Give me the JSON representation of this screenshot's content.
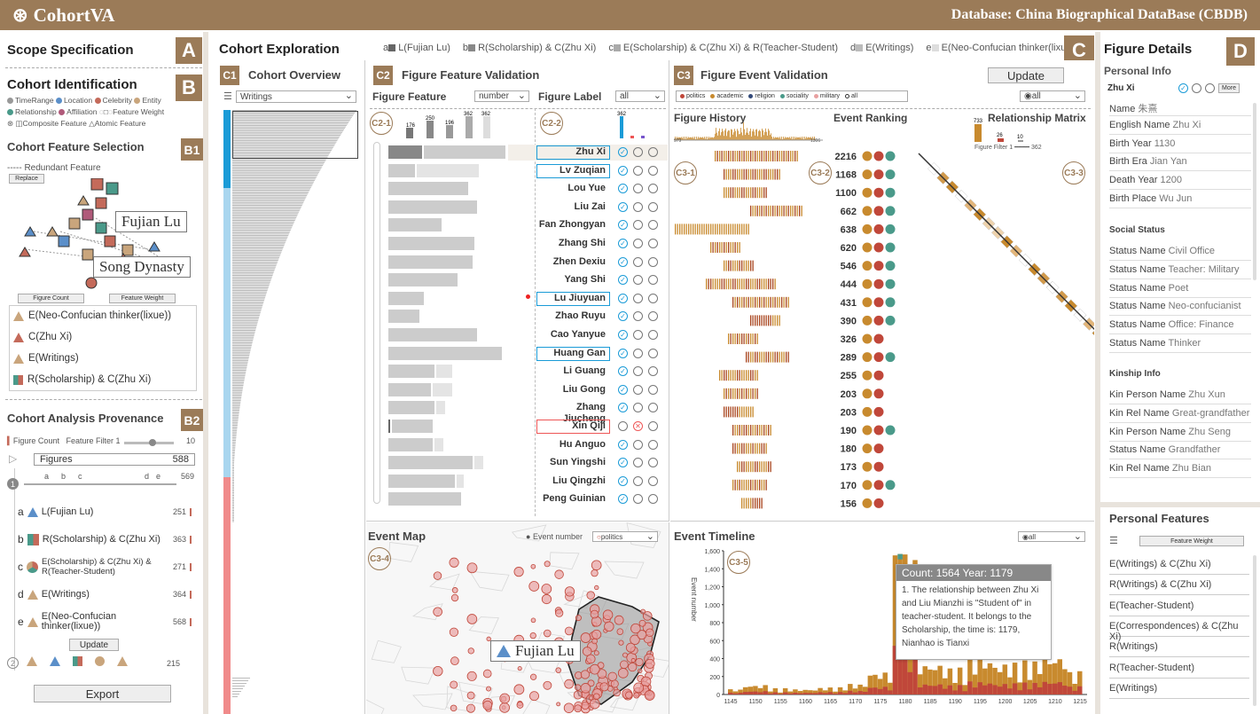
{
  "app": {
    "title": "CohortVA",
    "database": "Database: China Biographical DataBase (CBDB)"
  },
  "scope": {
    "title": "Scope Specification",
    "letter": "A"
  },
  "identification": {
    "title": "Cohort Identification",
    "letter": "B",
    "legend": [
      "TimeRange",
      "Location",
      "Celebrity",
      "Entity",
      "Relationship",
      "Affiliation",
      "Feature Weight",
      "Composite Feature",
      "Atomic Feature"
    ]
  },
  "feature_selection": {
    "title": "Cohort Feature Selection",
    "letter": "B1",
    "redundant": "Redundant Feature",
    "replace": "Replace",
    "callout1": "Fujian Lu",
    "callout2": "Song Dynasty",
    "btn_count": "Figure Count",
    "btn_weight": "Feature Weight",
    "items": [
      "E(Neo-Confucian thinker(lixue))",
      "C(Zhu Xi)",
      "E(Writings)",
      "R(Scholarship) & C(Zhu Xi)"
    ]
  },
  "provenance": {
    "title": "Cohort Analysis Provenance",
    "letter": "B2",
    "figure_count": "Figure Count",
    "feature_filter": "Feature Filter",
    "filter_min": "1",
    "filter_max": "10",
    "figures_label": "Figures",
    "figures_count": "588",
    "step1": "1",
    "step1_total": "569",
    "marks": [
      "a",
      "b",
      "c",
      "d",
      "e"
    ],
    "items": [
      {
        "l": "a",
        "name": "L(Fujian Lu)",
        "n": "251"
      },
      {
        "l": "b",
        "name": "R(Scholarship) & C(Zhu Xi)",
        "n": "363"
      },
      {
        "l": "c",
        "name": "E(Scholarship) & C(Zhu Xi) & R(Teacher-Student)",
        "n": "271"
      },
      {
        "l": "d",
        "name": "E(Writings)",
        "n": "364"
      },
      {
        "l": "e",
        "name": "E(Neo-Confucian thinker(lixue))",
        "n": "568"
      }
    ],
    "update": "Update",
    "step2": "2",
    "step2_n": "215",
    "export": "Export"
  },
  "exploration": {
    "title": "Cohort Exploration",
    "letter": "C",
    "legend": [
      {
        "k": "a",
        "t": "L(Fujian Lu)"
      },
      {
        "k": "b",
        "t": "R(Scholarship) & C(Zhu Xi)"
      },
      {
        "k": "c",
        "t": "E(Scholarship) & C(Zhu Xi) & R(Teacher-Student)"
      },
      {
        "k": "d",
        "t": "E(Writings)"
      },
      {
        "k": "e",
        "t": "E(Neo-Confucian thinker(lixue))"
      }
    ]
  },
  "overview": {
    "title": "Cohort Overview",
    "letter": "C1",
    "select": "Writings"
  },
  "validation": {
    "title": "Figure Feature Validation",
    "letter": "C2",
    "feature": "Figure Feature",
    "feature_sel": "number",
    "label": "Figure Label",
    "label_sel": "all",
    "c21": "C2-1",
    "c22": "C2-2",
    "hist_vals": [
      "176",
      "250",
      "196",
      "362",
      "362"
    ],
    "label_hist": "362"
  },
  "event_validation": {
    "title": "Figure Event Validation",
    "letter": "C3",
    "update": "Update",
    "types": [
      "politics",
      "academic",
      "religion",
      "sociality",
      "military",
      "all"
    ],
    "type_sel": "all",
    "history": "Figure History",
    "ranking": "Event Ranking",
    "matrix": "Relationship Matrix",
    "hist_min": "979",
    "hist_max": "1306",
    "m_vals": [
      "733",
      "26",
      "10"
    ],
    "figure_filter": "Figure Filter",
    "ff_min": "1",
    "ff_max": "362",
    "c31": "C3-1",
    "c32": "C3-2",
    "c33": "C3-3"
  },
  "figures": [
    {
      "name": "Zhu Xi",
      "rank": "2216",
      "box": "blue",
      "lab": "ok",
      "dots": 3
    },
    {
      "name": "Lv Zuqian",
      "rank": "1168",
      "box": "blue",
      "lab": "ok",
      "dots": 3
    },
    {
      "name": "Lou Yue",
      "rank": "1100",
      "box": "",
      "lab": "ok",
      "dots": 3
    },
    {
      "name": "Liu Zai",
      "rank": "662",
      "box": "",
      "lab": "ok",
      "dots": 3
    },
    {
      "name": "Fan Zhongyan",
      "rank": "638",
      "box": "",
      "lab": "ok",
      "dots": 3
    },
    {
      "name": "Zhang Shi",
      "rank": "620",
      "box": "",
      "lab": "ok",
      "dots": 3
    },
    {
      "name": "Zhen Dexiu",
      "rank": "546",
      "box": "",
      "lab": "ok",
      "dots": 3
    },
    {
      "name": "Yang Shi",
      "rank": "444",
      "box": "",
      "lab": "ok",
      "dots": 3
    },
    {
      "name": "Lu Jiuyuan",
      "rank": "431",
      "box": "blue",
      "lab": "ok",
      "dots": 3
    },
    {
      "name": "Zhao Ruyu",
      "rank": "390",
      "box": "",
      "lab": "ok",
      "dots": 3
    },
    {
      "name": "Cao Yanyue",
      "rank": "326",
      "box": "",
      "lab": "ok",
      "dots": 2
    },
    {
      "name": "Huang Gan",
      "rank": "289",
      "box": "blue",
      "lab": "ok",
      "dots": 3
    },
    {
      "name": "Li Guang",
      "rank": "255",
      "box": "",
      "lab": "ok",
      "dots": 2
    },
    {
      "name": "Liu Gong",
      "rank": "203",
      "box": "",
      "lab": "ok",
      "dots": 2
    },
    {
      "name": "Zhang Jiucheng",
      "rank": "203",
      "box": "",
      "lab": "ok",
      "dots": 2
    },
    {
      "name": "Xin Qiji",
      "rank": "190",
      "box": "red",
      "lab": "no",
      "dots": 3
    },
    {
      "name": "Hu Anguo",
      "rank": "180",
      "box": "",
      "lab": "ok",
      "dots": 2
    },
    {
      "name": "Sun Yingshi",
      "rank": "173",
      "box": "",
      "lab": "ok",
      "dots": 2
    },
    {
      "name": "Liu Qingzhi",
      "rank": "170",
      "box": "",
      "lab": "ok",
      "dots": 3
    },
    {
      "name": "Peng Guinian",
      "rank": "156",
      "box": "",
      "lab": "ok",
      "dots": 2
    }
  ],
  "event_map": {
    "title": "Event Map",
    "c34": "C3-4",
    "legend": "Event number",
    "sel": "politics",
    "callout": "Fujian Lu"
  },
  "timeline": {
    "title": "Event Timeline",
    "c35": "C3-5",
    "sel": "all",
    "ylabel": "Event number",
    "tooltip_head": "Count: 1564  Year: 1179",
    "tooltip": "1. The relationship between Zhu Xi and Liu Mianzhi is \"Student of\" in teacher-student. It belongs to the Scholarship, the time is: 1179, Nianhao is Tianxi"
  },
  "chart_data": {
    "type": "bar",
    "title": "Event Timeline",
    "xlabel": "",
    "ylabel": "Event number",
    "ylim": [
      0,
      1600
    ],
    "x": [
      1145,
      1150,
      1155,
      1160,
      1165,
      1170,
      1175,
      1180,
      1185,
      1190,
      1195,
      1200,
      1205,
      1210,
      1215
    ],
    "yticks": [
      0,
      200,
      400,
      600,
      800,
      1000,
      1200,
      1400,
      1600
    ],
    "values": [
      60,
      110,
      70,
      60,
      80,
      120,
      260,
      1564,
      360,
      300,
      420,
      360,
      380,
      450,
      260
    ]
  },
  "details": {
    "title": "Figure Details",
    "letter": "D",
    "personal": "Personal Info",
    "name": "Zhu Xi",
    "more": "More",
    "info": [
      [
        "Name",
        "朱熹"
      ],
      [
        "English Name",
        "Zhu Xi"
      ],
      [
        "Birth Year",
        "1130"
      ],
      [
        "Birth Era",
        "Jian Yan"
      ],
      [
        "Death Year",
        "1200"
      ],
      [
        "Birth Place",
        "Wu Jun"
      ]
    ],
    "social": "Social Status",
    "status": [
      [
        "Status Name",
        "Civil Office"
      ],
      [
        "Status Name",
        "Teacher: Military"
      ],
      [
        "Status Name",
        "Poet"
      ],
      [
        "Status Name",
        "Neo-confucianist"
      ],
      [
        "Status Name",
        "Office: Finance"
      ],
      [
        "Status Name",
        "Thinker"
      ]
    ],
    "kinship": "Kinship Info",
    "kin": [
      [
        "Kin Person Name",
        "Zhu Xun"
      ],
      [
        "Kin Rel Name",
        "Great-grandfather"
      ],
      [
        "Kin Person Name",
        "Zhu Seng"
      ],
      [
        "Status Name",
        "Grandfather"
      ],
      [
        "Kin Rel Name",
        "Zhu Bian"
      ]
    ],
    "features_title": "Personal Features",
    "fw": "Feature Weight",
    "features": [
      "E(Writings) & C(Zhu Xi)",
      "R(Writings) & C(Zhu Xi)",
      "E(Teacher-Student)",
      "E(Correspondences) & C(Zhu Xi)",
      "R(Writings)",
      "R(Teacher-Student)",
      "E(Writings)"
    ]
  },
  "colors": {
    "brand": "#9b7b58",
    "blue": "#1a9bd7",
    "pink": "#f08a8a",
    "academic": "#c88a2e",
    "politics": "#c0473a",
    "sociality": "#4a9a8a"
  }
}
